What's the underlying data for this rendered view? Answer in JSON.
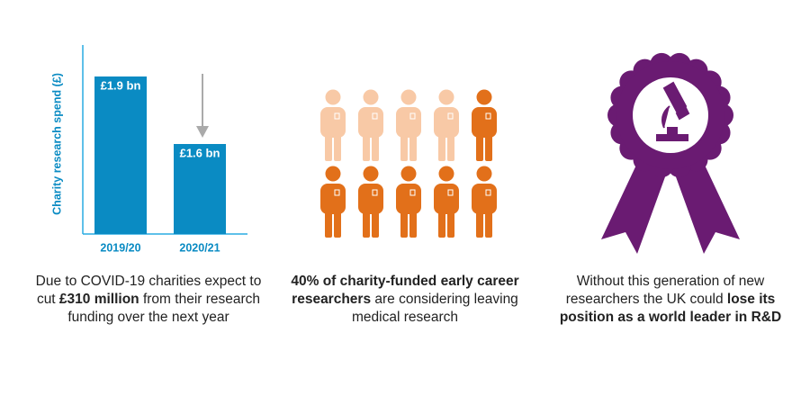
{
  "chart_data": [
    {
      "type": "bar",
      "y_label": "Charity research spend (£)",
      "categories": [
        "2019/20",
        "2020/21"
      ],
      "values": [
        1.9,
        1.6
      ],
      "value_labels": [
        "£1.9 bn",
        "£1.6 bn"
      ],
      "color": "#0a8bc3",
      "ylim": [
        1.2,
        2.0
      ]
    },
    {
      "type": "pictogram",
      "values": [
        4,
        6
      ],
      "colors": [
        "#f8c9a6",
        "#e2701a"
      ]
    }
  ],
  "captions": [
    [
      {
        "text": "Due to COVID-19 charities expect to cut ",
        "bold": false
      },
      {
        "text": "£310 million",
        "bold": true
      },
      {
        "text": " from their research funding over the next year",
        "bold": false
      }
    ],
    [
      {
        "text": "40% of charity-funded early career researchers",
        "bold": true
      },
      {
        "text": " are considering leaving medical research",
        "bold": false
      }
    ],
    [
      {
        "text": "Without this generation of new researchers the UK could ",
        "bold": false
      },
      {
        "text": "lose its position as a world leader in R&D",
        "bold": true
      }
    ]
  ]
}
